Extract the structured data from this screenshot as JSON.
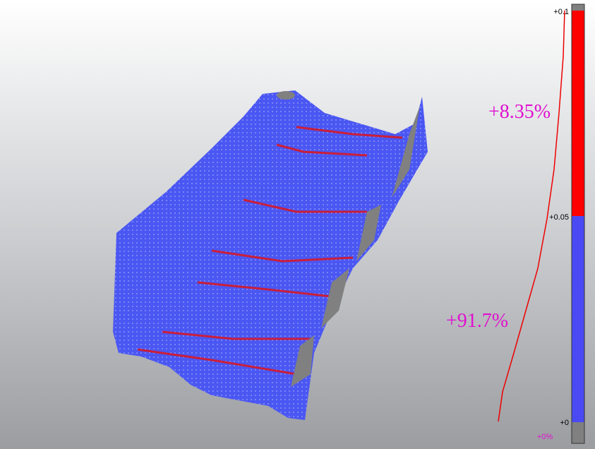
{
  "scale": {
    "ticks": [
      "+0.1",
      "+0.05",
      "+0"
    ],
    "bottom_label": "+0%"
  },
  "stats": {
    "upper": "+8.35%",
    "lower": "+91.7%"
  }
}
